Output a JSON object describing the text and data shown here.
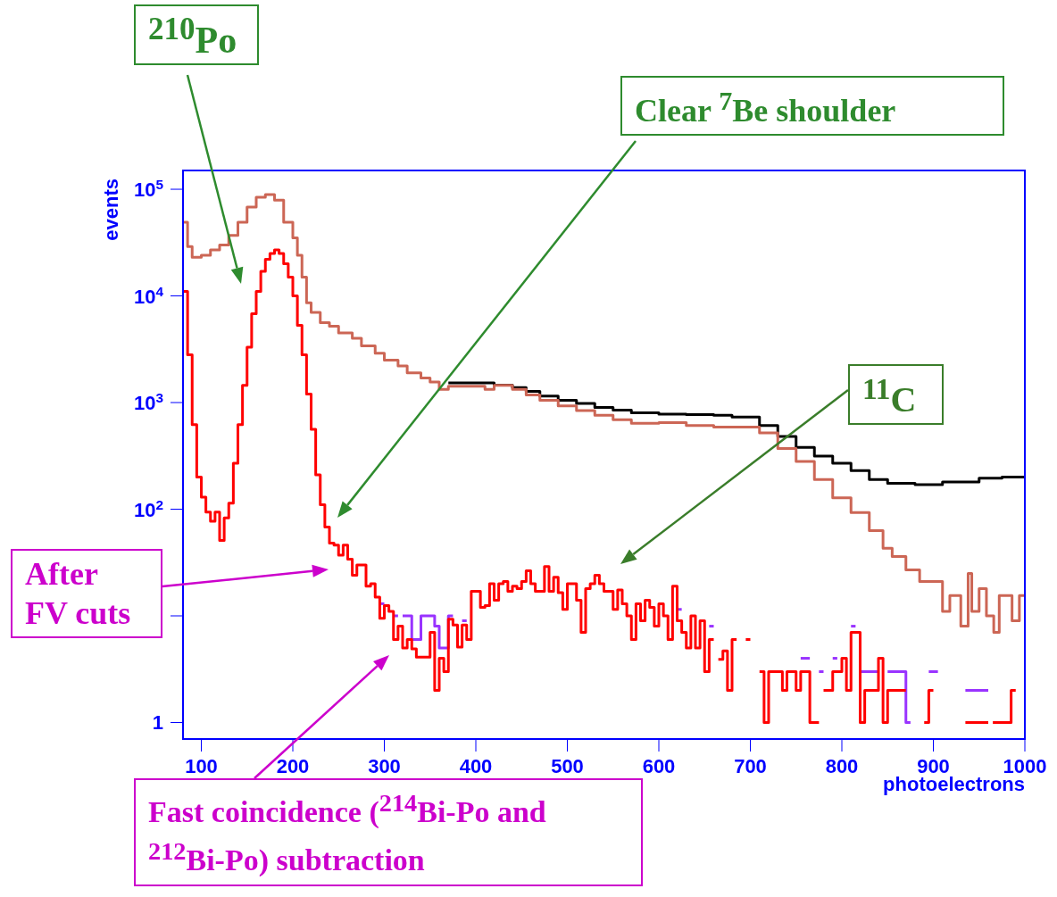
{
  "chart_data": {
    "type": "step",
    "xlabel": "photoelectrons",
    "ylabel": "events",
    "xlim": [
      80,
      1000
    ],
    "xticks": [
      100,
      200,
      300,
      400,
      500,
      600,
      700,
      800,
      900,
      1000
    ],
    "ylim": [
      0.7,
      150000
    ],
    "log": true,
    "yticks": [
      1,
      {
        "value": 10,
        "label": null
      },
      {
        "value": 100,
        "label": "10$^{2}$"
      },
      {
        "value": 1000,
        "label": "10$^{3}$"
      },
      {
        "value": 10000,
        "label": "10$^{4}$"
      },
      {
        "value": 100000,
        "label": "10$^{5}$"
      }
    ],
    "series": [
      {
        "color": "#000000",
        "x": [
          370,
          420,
          440,
          455,
          470,
          490,
          510,
          530,
          550,
          570,
          600,
          630,
          660,
          680,
          710,
          730,
          750,
          770,
          790,
          810,
          830,
          850,
          880,
          910,
          950,
          975,
          1000
        ],
        "values": [
          1530,
          1460,
          1380,
          1270,
          1150,
          1050,
          980,
          900,
          850,
          800,
          780,
          770,
          760,
          730,
          610,
          480,
          380,
          315,
          270,
          230,
          190,
          175,
          170,
          180,
          195,
          200,
          200
        ]
      },
      {
        "color": "#cc6655",
        "x": [
          80,
          85,
          90,
          100,
          110,
          120,
          130,
          140,
          150,
          160,
          170,
          180,
          190,
          200,
          205,
          210,
          215,
          220,
          230,
          240,
          250,
          265,
          275,
          290,
          300,
          315,
          325,
          340,
          350,
          360,
          370,
          410,
          420,
          440,
          455,
          470,
          490,
          510,
          530,
          550,
          570,
          600,
          630,
          660,
          710,
          730,
          750,
          770,
          790,
          810,
          830,
          845,
          855,
          870,
          885,
          910,
          918,
          930,
          938,
          942,
          950,
          958,
          966,
          972,
          986,
          994,
          1000
        ],
        "values": [
          49000,
          29000,
          23000,
          24000,
          27000,
          30000,
          37000,
          49000,
          68000,
          84000,
          89000,
          79000,
          49000,
          35000,
          24000,
          15000,
          8600,
          7000,
          5600,
          5200,
          4500,
          4000,
          3400,
          2900,
          2500,
          2200,
          1900,
          1700,
          1560,
          1330,
          1420,
          1330,
          1450,
          1330,
          1180,
          1050,
          930,
          840,
          760,
          690,
          640,
          650,
          610,
          590,
          520,
          370,
          280,
          190,
          128,
          93,
          63,
          43,
          36,
          27,
          21,
          11,
          15.5,
          8,
          25,
          11,
          18,
          10,
          7,
          15.5,
          9,
          15.5,
          15.5
        ]
      },
      {
        "color": "#9933ff",
        "x": [
          295,
          300
        ],
        "values": [
          13,
          13
        ]
      },
      {
        "color": "#9933ff",
        "x": [
          310,
          315
        ],
        "values": [
          10,
          10
        ]
      },
      {
        "color": "#9933ff",
        "x": [
          320,
          330,
          340,
          355,
          360,
          370,
          375
        ],
        "values": [
          10,
          6,
          10,
          8,
          5,
          10,
          10
        ]
      },
      {
        "color": "#9933ff",
        "x": [
          385,
          390
        ],
        "values": [
          9,
          9
        ]
      },
      {
        "color": "#9933ff",
        "x": [
          620,
          625
        ],
        "values": [
          11.5,
          11.5
        ]
      },
      {
        "color": "#9933ff",
        "x": [
          655,
          660
        ],
        "values": [
          8,
          8
        ]
      },
      {
        "color": "#9933ff",
        "x": [
          755,
          765
        ],
        "values": [
          4,
          4
        ]
      },
      {
        "color": "#9933ff",
        "x": [
          775,
          780
        ],
        "values": [
          3,
          3
        ]
      },
      {
        "color": "#9933ff",
        "x": [
          790,
          795
        ],
        "values": [
          4,
          4
        ]
      },
      {
        "color": "#9933ff",
        "x": [
          810,
          815
        ],
        "values": [
          8,
          8
        ]
      },
      {
        "color": "#9933ff",
        "x": [
          820,
          840
        ],
        "values": [
          3,
          3
        ]
      },
      {
        "color": "#9933ff",
        "x": [
          850,
          870,
          875
        ],
        "values": [
          3,
          1,
          1
        ]
      },
      {
        "color": "#9933ff",
        "x": [
          895,
          905
        ],
        "values": [
          3,
          3
        ]
      },
      {
        "color": "#9933ff",
        "x": [
          935,
          960
        ],
        "values": [
          2,
          2
        ]
      },
      {
        "color": "#ff0000",
        "x": [
          80,
          85,
          90,
          95,
          100,
          105,
          110,
          115,
          120,
          125,
          130,
          135,
          140,
          145,
          150,
          155,
          160,
          165,
          170,
          175,
          180,
          185,
          190,
          195,
          200,
          205,
          210,
          215,
          220,
          225,
          230,
          235,
          240,
          245,
          250,
          255,
          260,
          265,
          270,
          275,
          280,
          285,
          290,
          295,
          300,
          305,
          310,
          315,
          320,
          325,
          330,
          335,
          340,
          345,
          350,
          355,
          360,
          365,
          370,
          375,
          380,
          385,
          390,
          395,
          400,
          405,
          410,
          415,
          420,
          425,
          430,
          435,
          440,
          445,
          450,
          455,
          460,
          465,
          470,
          475,
          480,
          485,
          490,
          495,
          500,
          505,
          510,
          515,
          520,
          525,
          530,
          535,
          540,
          545,
          550,
          555,
          560,
          565,
          570,
          575,
          580,
          585,
          590,
          595,
          600,
          605,
          610,
          615,
          620,
          625,
          630,
          635,
          640,
          645,
          650,
          655,
          660
        ],
        "values": [
          11000,
          2800,
          620,
          200,
          130,
          94,
          77,
          94,
          51,
          83,
          114,
          270,
          620,
          1450,
          3300,
          6800,
          11000,
          17000,
          22000,
          25000,
          27000,
          25000,
          20000,
          15000,
          10000,
          5300,
          2800,
          1200,
          560,
          210,
          110,
          68,
          48,
          46,
          37,
          46,
          34,
          24,
          30,
          30,
          19,
          20,
          15,
          9.5,
          12.5,
          11,
          6,
          8,
          5,
          6,
          4.9,
          4.1,
          4.1,
          4.1,
          7,
          2,
          4,
          3,
          9.3,
          8.2,
          5.1,
          8.2,
          6,
          17,
          17,
          12,
          12.5,
          20,
          14,
          20,
          21,
          17,
          19,
          18,
          21,
          26.5,
          20,
          17,
          17,
          29,
          17,
          23,
          16.5,
          11.5,
          20,
          20,
          14,
          7,
          18,
          20,
          24,
          20,
          17,
          17,
          11.5,
          17.5,
          13,
          10,
          6,
          13,
          9,
          14,
          12,
          8,
          13,
          10,
          6,
          19,
          9,
          7,
          5,
          10,
          5,
          9,
          3,
          6,
          6
        ]
      },
      {
        "color": "#ff0000",
        "x": [
          665,
          670,
          675,
          680,
          685
        ],
        "values": [
          3.9,
          4.7,
          2,
          6,
          6
        ]
      },
      {
        "color": "#ff0000",
        "x": [
          695,
          700
        ],
        "values": [
          6,
          6
        ]
      },
      {
        "color": "#ff0000",
        "x": [
          710,
          715,
          720,
          735,
          740,
          750,
          755,
          765,
          775
        ],
        "values": [
          3,
          1,
          3,
          2,
          3,
          2,
          3,
          1,
          1
        ]
      },
      {
        "color": "#ff0000",
        "x": [
          780,
          790,
          800,
          805,
          810,
          820,
          825,
          840,
          845,
          850,
          870
        ],
        "values": [
          2,
          3,
          4,
          2,
          7,
          1,
          2,
          4,
          1,
          2,
          2
        ]
      },
      {
        "color": "#ff0000",
        "x": [
          890,
          895,
          900
        ],
        "values": [
          1,
          2,
          2
        ]
      },
      {
        "color": "#ff0000",
        "x": [
          935,
          960
        ],
        "values": [
          1,
          1
        ]
      },
      {
        "color": "#ff0000",
        "x": [
          965,
          985,
          990
        ],
        "values": [
          1,
          2,
          2
        ]
      }
    ],
    "annotations": [
      "$^{210}$Po",
      "Clear $^{7}$Be shoulder",
      "$^{11}$C",
      "After FV cuts",
      "Fast coincidence ($^{214}$Bi-Po and $^{212}$Bi-Po) subtraction"
    ]
  }
}
